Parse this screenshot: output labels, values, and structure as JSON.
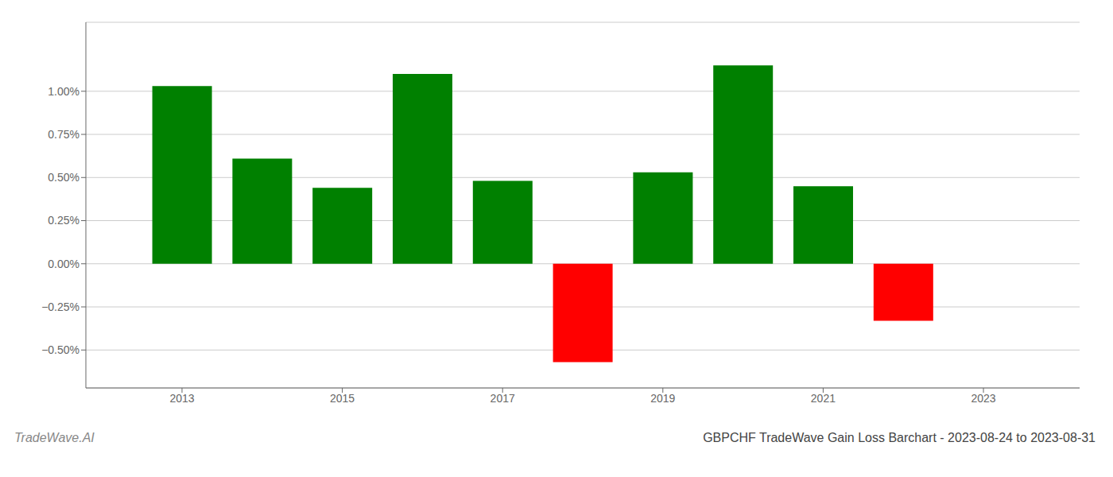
{
  "chart_data": {
    "type": "bar",
    "title": "GBPCHF TradeWave Gain Loss Barchart - 2023-08-24 to 2023-08-31",
    "annotations": [
      "TradeWave.AI"
    ],
    "x": [
      2013,
      2014,
      2015,
      2016,
      2017,
      2018,
      2019,
      2020,
      2021,
      2022
    ],
    "values": [
      1.03,
      0.61,
      0.44,
      1.1,
      0.48,
      -0.57,
      0.53,
      1.15,
      0.45,
      -0.33
    ],
    "colors": [
      "#008000",
      "#008000",
      "#008000",
      "#008000",
      "#008000",
      "#ff0000",
      "#008000",
      "#008000",
      "#008000",
      "#ff0000"
    ],
    "xlim": [
      2011.8,
      2024.2
    ],
    "xticks": [
      2013,
      2015,
      2017,
      2019,
      2021,
      2023
    ],
    "ylim": [
      -0.72,
      1.4
    ],
    "yticks": [
      {
        "value": -0.5,
        "label": "−0.50%"
      },
      {
        "value": -0.25,
        "label": "−0.25%"
      },
      {
        "value": 0.0,
        "label": "0.00%"
      },
      {
        "value": 0.25,
        "label": "0.25%"
      },
      {
        "value": 0.5,
        "label": "0.50%"
      },
      {
        "value": 0.75,
        "label": "0.75%"
      },
      {
        "value": 1.0,
        "label": "1.00%"
      }
    ],
    "grid": true
  }
}
